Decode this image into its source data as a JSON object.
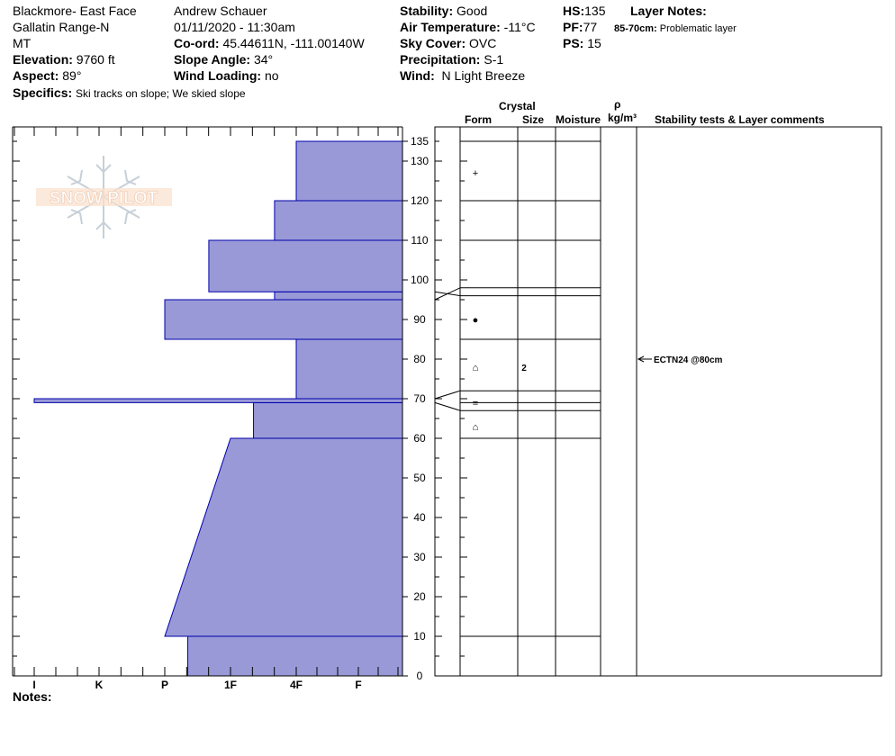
{
  "header": {
    "location": "Blackmore- East Face",
    "range": "Gallatin Range-N",
    "state": "MT",
    "elevation_label": "Elevation:",
    "elevation_value": "9760 ft",
    "aspect_label": "Aspect:",
    "aspect_value": "89°",
    "specifics_label": "Specifics:",
    "specifics_value": "Ski tracks on slope; We skied slope",
    "observer": "Andrew Schauer",
    "datetime": "01/11/2020 - 11:30am",
    "coord_label": "Co-ord:",
    "coord_value": "45.44611N, -111.00140W",
    "slope_label": "Slope Angle:",
    "slope_value": "34°",
    "wind_loading_label": "Wind Loading:",
    "wind_loading_value": "no",
    "stability_label": "Stability:",
    "stability_value": "Good",
    "air_temp_label": "Air Temperature:",
    "air_temp_value": "-11°C",
    "sky_label": "Sky Cover:",
    "sky_value": "OVC",
    "precip_label": "Precipitation:",
    "precip_value": "S-1",
    "wind_label": "Wind:",
    "wind_value": "N Light Breeze",
    "hs_label": "HS:",
    "hs_value": "135",
    "pf_label": "PF:",
    "pf_value": "77",
    "ps_label": "PS:",
    "ps_value": "15",
    "layer_notes_label": "Layer Notes:",
    "layer_note_range": "85-70cm:",
    "layer_note_text": "Problematic layer"
  },
  "table_headers": {
    "crystal": "Crystal",
    "form": "Form",
    "size": "Size",
    "moisture": "Moisture",
    "rho": "ρ",
    "density_unit": "kg/m³",
    "stability_comments": "Stability tests & Layer comments"
  },
  "logo_text": "SNOW PILOT",
  "notes_label": "Notes:",
  "colors": {
    "hardness_fill": "#9999d8",
    "hardness_stroke": "#0000aa",
    "grid": "#000000"
  },
  "chart_data": {
    "type": "bar",
    "orientation": "horizontal",
    "x_tick_labels": [
      "I",
      "K",
      "P",
      "1F",
      "4F",
      "F"
    ],
    "y_ticks": [
      0,
      10,
      20,
      30,
      40,
      50,
      60,
      70,
      80,
      90,
      100,
      110,
      120,
      130,
      135
    ],
    "ylim": [
      0,
      135
    ],
    "hardness_profile": [
      {
        "bottom": 0,
        "top": 10,
        "hardness_from": 2.65,
        "hardness_to": 2.65
      },
      {
        "bottom": 10,
        "top": 60,
        "hardness_from": 3.0,
        "hardness_to": 2.0
      },
      {
        "bottom": 60,
        "top": 69,
        "hardness_from": 1.65,
        "hardness_to": 1.65
      },
      {
        "bottom": 69,
        "top": 70,
        "hardness_from": 5.0,
        "hardness_to": 5.0
      },
      {
        "bottom": 70,
        "top": 85,
        "hardness_from": 1.0,
        "hardness_to": 1.0
      },
      {
        "bottom": 85,
        "top": 95,
        "hardness_from": 3.0,
        "hardness_to": 3.0
      },
      {
        "bottom": 95,
        "top": 97,
        "hardness_from": 1.33,
        "hardness_to": 1.33
      },
      {
        "bottom": 97,
        "top": 110,
        "hardness_from": 2.33,
        "hardness_to": 2.33
      },
      {
        "bottom": 110,
        "top": 120,
        "hardness_from": 1.33,
        "hardness_to": 1.33
      },
      {
        "bottom": 120,
        "top": 135,
        "hardness_from": 1.0,
        "hardness_to": 1.0
      }
    ],
    "layer_boundaries": [
      135,
      120,
      110,
      98,
      96,
      85,
      72,
      69,
      67,
      60,
      10
    ],
    "crystal_forms": [
      {
        "height": 127,
        "form": "+",
        "size": ""
      },
      {
        "height": 90,
        "form": "●",
        "size": ""
      },
      {
        "height": 78,
        "form": "⌂",
        "size": "2"
      },
      {
        "height": 69,
        "form": "=",
        "size": ""
      },
      {
        "height": 63,
        "form": "⌂",
        "size": ""
      }
    ],
    "stability_tests": [
      {
        "height": 80,
        "label": "ECTN24 @80cm"
      }
    ]
  }
}
